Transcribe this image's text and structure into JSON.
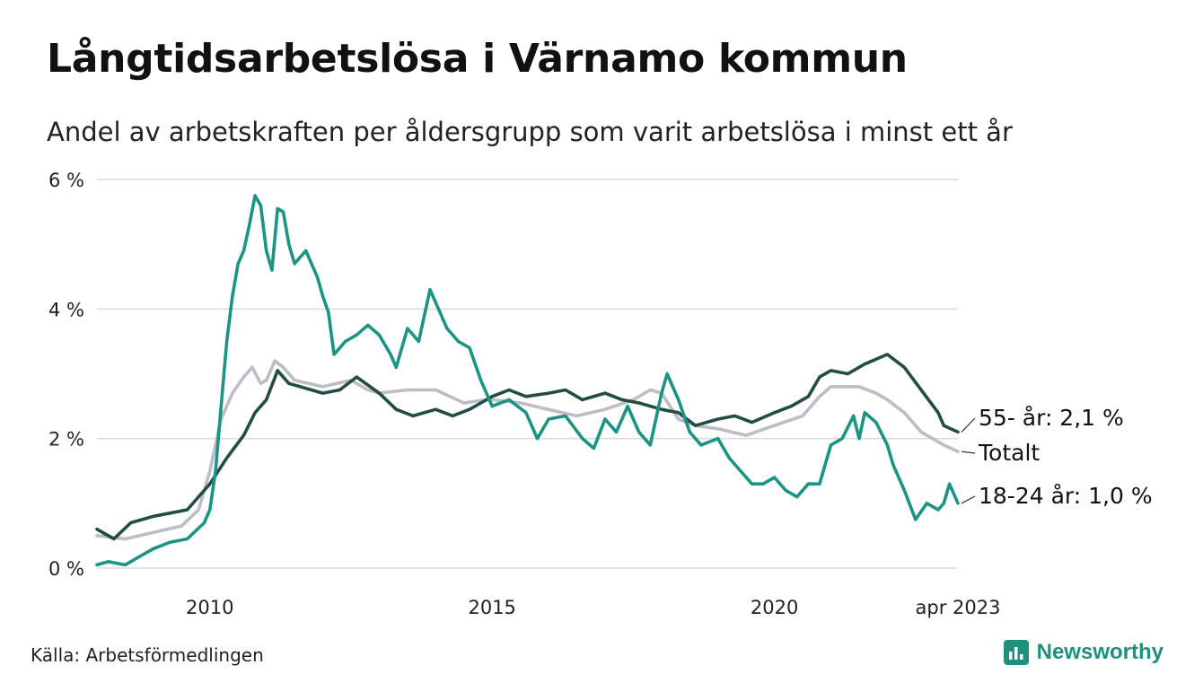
{
  "title": "Långtidsarbetslösa i Värnamo kommun",
  "subtitle": "Andel av arbetskraften per åldersgrupp som varit arbetslösa i minst ett år",
  "source": "Källa: Arbetsförmedlingen",
  "brand": "Newsworthy",
  "colors": {
    "youth": "#1b9484",
    "elder": "#234d43",
    "total": "#bdbdc7",
    "grid": "#dadada"
  },
  "chart_data": {
    "type": "line",
    "x_unit": "year",
    "xlim": [
      2008.0,
      2023.25
    ],
    "ylim": [
      0,
      6
    ],
    "y_ticks": [
      0,
      2,
      4,
      6
    ],
    "y_tick_labels": [
      "0 %",
      "2 %",
      "4 %",
      "6 %"
    ],
    "x_ticks": [
      2010,
      2015,
      2020,
      2023.25
    ],
    "x_tick_labels": [
      "2010",
      "2015",
      "2020",
      "apr 2023"
    ],
    "grid": "horizontal",
    "series": [
      {
        "name": "Totalt",
        "key": "total",
        "end_label": "Totalt",
        "points": [
          [
            2008.0,
            0.5
          ],
          [
            2008.5,
            0.45
          ],
          [
            2009.0,
            0.55
          ],
          [
            2009.5,
            0.65
          ],
          [
            2009.8,
            0.9
          ],
          [
            2010.0,
            1.5
          ],
          [
            2010.2,
            2.3
          ],
          [
            2010.4,
            2.7
          ],
          [
            2010.6,
            2.95
          ],
          [
            2010.75,
            3.1
          ],
          [
            2010.9,
            2.85
          ],
          [
            2011.0,
            2.9
          ],
          [
            2011.15,
            3.2
          ],
          [
            2011.3,
            3.1
          ],
          [
            2011.5,
            2.9
          ],
          [
            2012.0,
            2.8
          ],
          [
            2012.5,
            2.9
          ],
          [
            2012.8,
            2.75
          ],
          [
            2013.0,
            2.7
          ],
          [
            2013.5,
            2.75
          ],
          [
            2014.0,
            2.75
          ],
          [
            2014.5,
            2.55
          ],
          [
            2014.9,
            2.6
          ],
          [
            2015.0,
            2.6
          ],
          [
            2015.5,
            2.55
          ],
          [
            2016.0,
            2.45
          ],
          [
            2016.5,
            2.35
          ],
          [
            2017.0,
            2.45
          ],
          [
            2017.5,
            2.6
          ],
          [
            2017.8,
            2.75
          ],
          [
            2018.0,
            2.7
          ],
          [
            2018.3,
            2.3
          ],
          [
            2018.6,
            2.2
          ],
          [
            2019.0,
            2.15
          ],
          [
            2019.5,
            2.05
          ],
          [
            2020.0,
            2.2
          ],
          [
            2020.5,
            2.35
          ],
          [
            2020.8,
            2.65
          ],
          [
            2021.0,
            2.8
          ],
          [
            2021.5,
            2.8
          ],
          [
            2021.8,
            2.7
          ],
          [
            2022.0,
            2.6
          ],
          [
            2022.3,
            2.4
          ],
          [
            2022.6,
            2.1
          ],
          [
            2022.9,
            1.95
          ],
          [
            2023.0,
            1.9
          ],
          [
            2023.25,
            1.8
          ]
        ]
      },
      {
        "name": "55- år",
        "key": "elder",
        "end_label": "55- år: 2,1 %",
        "points": [
          [
            2008.0,
            0.6
          ],
          [
            2008.3,
            0.45
          ],
          [
            2008.6,
            0.7
          ],
          [
            2009.0,
            0.8
          ],
          [
            2009.3,
            0.85
          ],
          [
            2009.6,
            0.9
          ],
          [
            2010.0,
            1.3
          ],
          [
            2010.3,
            1.7
          ],
          [
            2010.6,
            2.05
          ],
          [
            2010.8,
            2.4
          ],
          [
            2011.0,
            2.6
          ],
          [
            2011.2,
            3.05
          ],
          [
            2011.4,
            2.85
          ],
          [
            2011.6,
            2.8
          ],
          [
            2012.0,
            2.7
          ],
          [
            2012.3,
            2.75
          ],
          [
            2012.6,
            2.95
          ],
          [
            2013.0,
            2.7
          ],
          [
            2013.3,
            2.45
          ],
          [
            2013.6,
            2.35
          ],
          [
            2014.0,
            2.45
          ],
          [
            2014.3,
            2.35
          ],
          [
            2014.6,
            2.45
          ],
          [
            2014.9,
            2.6
          ],
          [
            2015.0,
            2.65
          ],
          [
            2015.3,
            2.75
          ],
          [
            2015.6,
            2.65
          ],
          [
            2016.0,
            2.7
          ],
          [
            2016.3,
            2.75
          ],
          [
            2016.6,
            2.6
          ],
          [
            2017.0,
            2.7
          ],
          [
            2017.3,
            2.6
          ],
          [
            2017.6,
            2.55
          ],
          [
            2018.0,
            2.45
          ],
          [
            2018.3,
            2.4
          ],
          [
            2018.6,
            2.2
          ],
          [
            2019.0,
            2.3
          ],
          [
            2019.3,
            2.35
          ],
          [
            2019.6,
            2.25
          ],
          [
            2020.0,
            2.4
          ],
          [
            2020.3,
            2.5
          ],
          [
            2020.6,
            2.65
          ],
          [
            2020.8,
            2.95
          ],
          [
            2021.0,
            3.05
          ],
          [
            2021.3,
            3.0
          ],
          [
            2021.6,
            3.15
          ],
          [
            2022.0,
            3.3
          ],
          [
            2022.3,
            3.1
          ],
          [
            2022.6,
            2.75
          ],
          [
            2022.9,
            2.4
          ],
          [
            2023.0,
            2.2
          ],
          [
            2023.25,
            2.1
          ]
        ]
      },
      {
        "name": "18-24 år",
        "key": "youth",
        "end_label": "18-24 år: 1,0 %",
        "points": [
          [
            2008.0,
            0.05
          ],
          [
            2008.2,
            0.1
          ],
          [
            2008.5,
            0.05
          ],
          [
            2008.8,
            0.2
          ],
          [
            2009.0,
            0.3
          ],
          [
            2009.3,
            0.4
          ],
          [
            2009.6,
            0.45
          ],
          [
            2009.9,
            0.7
          ],
          [
            2010.0,
            0.9
          ],
          [
            2010.1,
            1.5
          ],
          [
            2010.2,
            2.5
          ],
          [
            2010.3,
            3.5
          ],
          [
            2010.4,
            4.2
          ],
          [
            2010.5,
            4.7
          ],
          [
            2010.6,
            4.9
          ],
          [
            2010.7,
            5.3
          ],
          [
            2010.8,
            5.75
          ],
          [
            2010.9,
            5.6
          ],
          [
            2011.0,
            4.9
          ],
          [
            2011.1,
            4.6
          ],
          [
            2011.2,
            5.55
          ],
          [
            2011.3,
            5.5
          ],
          [
            2011.4,
            5.0
          ],
          [
            2011.5,
            4.7
          ],
          [
            2011.7,
            4.9
          ],
          [
            2011.9,
            4.5
          ],
          [
            2012.0,
            4.2
          ],
          [
            2012.1,
            3.95
          ],
          [
            2012.2,
            3.3
          ],
          [
            2012.4,
            3.5
          ],
          [
            2012.6,
            3.6
          ],
          [
            2012.8,
            3.75
          ],
          [
            2013.0,
            3.6
          ],
          [
            2013.2,
            3.3
          ],
          [
            2013.3,
            3.1
          ],
          [
            2013.5,
            3.7
          ],
          [
            2013.7,
            3.5
          ],
          [
            2013.9,
            4.3
          ],
          [
            2014.0,
            4.1
          ],
          [
            2014.2,
            3.7
          ],
          [
            2014.4,
            3.5
          ],
          [
            2014.6,
            3.4
          ],
          [
            2014.8,
            2.9
          ],
          [
            2015.0,
            2.5
          ],
          [
            2015.3,
            2.6
          ],
          [
            2015.6,
            2.4
          ],
          [
            2015.8,
            2.0
          ],
          [
            2016.0,
            2.3
          ],
          [
            2016.3,
            2.35
          ],
          [
            2016.6,
            2.0
          ],
          [
            2016.8,
            1.85
          ],
          [
            2017.0,
            2.3
          ],
          [
            2017.2,
            2.1
          ],
          [
            2017.4,
            2.5
          ],
          [
            2017.6,
            2.1
          ],
          [
            2017.8,
            1.9
          ],
          [
            2018.0,
            2.7
          ],
          [
            2018.1,
            3.0
          ],
          [
            2018.3,
            2.6
          ],
          [
            2018.5,
            2.1
          ],
          [
            2018.7,
            1.9
          ],
          [
            2019.0,
            2.0
          ],
          [
            2019.2,
            1.7
          ],
          [
            2019.4,
            1.5
          ],
          [
            2019.6,
            1.3
          ],
          [
            2019.8,
            1.3
          ],
          [
            2020.0,
            1.4
          ],
          [
            2020.2,
            1.2
          ],
          [
            2020.4,
            1.1
          ],
          [
            2020.6,
            1.3
          ],
          [
            2020.8,
            1.3
          ],
          [
            2021.0,
            1.9
          ],
          [
            2021.2,
            2.0
          ],
          [
            2021.4,
            2.35
          ],
          [
            2021.5,
            2.0
          ],
          [
            2021.6,
            2.4
          ],
          [
            2021.8,
            2.25
          ],
          [
            2022.0,
            1.9
          ],
          [
            2022.1,
            1.6
          ],
          [
            2022.3,
            1.2
          ],
          [
            2022.5,
            0.75
          ],
          [
            2022.7,
            1.0
          ],
          [
            2022.9,
            0.9
          ],
          [
            2023.0,
            1.0
          ],
          [
            2023.1,
            1.3
          ],
          [
            2023.25,
            1.0
          ]
        ]
      }
    ]
  }
}
